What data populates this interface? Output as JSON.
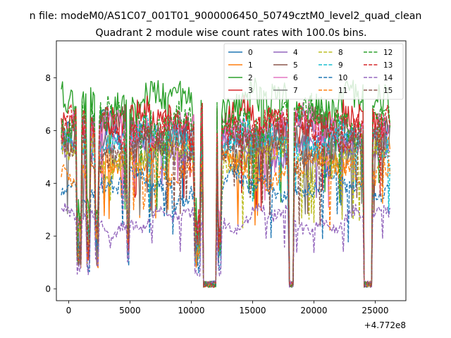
{
  "chart_data": {
    "type": "line",
    "suptitle": "n file: modeM0/AS1C07_001T01_9000006450_50749cztM0_level2_quad_clean",
    "title": "Quadrant 2 module wise count rates with 100.0s bins.",
    "xlabel": "",
    "ylabel": "",
    "offset_label": "+4.772e8",
    "xlim": [
      -1000,
      27500
    ],
    "ylim": [
      -0.45,
      9.4
    ],
    "xticks": [
      0,
      5000,
      10000,
      15000,
      20000,
      25000
    ],
    "xtick_labels": [
      "0",
      "5000",
      "10000",
      "15000",
      "20000",
      "25000"
    ],
    "yticks": [
      0,
      2,
      4,
      6,
      8
    ],
    "ytick_labels": [
      "0",
      "2",
      "4",
      "6",
      "8"
    ],
    "legend_position": "upper-right",
    "legend_columns": 4,
    "data_range": [
      -600,
      26200
    ],
    "gaps": [
      [
        11000,
        12000
      ],
      [
        17950,
        18300
      ],
      [
        24100,
        24700
      ]
    ],
    "dips": [
      [
        700,
        1000
      ],
      [
        1500,
        1700
      ],
      [
        2200,
        2400
      ],
      [
        4800,
        4900
      ],
      [
        10300,
        10700
      ],
      [
        12200,
        12400
      ]
    ],
    "series": [
      {
        "name": "0",
        "level": 5.9,
        "color": "#1f77b4",
        "dash": "solid"
      },
      {
        "name": "1",
        "level": 5.2,
        "color": "#ff7f0e",
        "dash": "solid"
      },
      {
        "name": "2",
        "level": 7.0,
        "color": "#2ca02c",
        "dash": "solid"
      },
      {
        "name": "3",
        "level": 6.3,
        "color": "#d62728",
        "dash": "solid"
      },
      {
        "name": "4",
        "level": 5.5,
        "color": "#9467bd",
        "dash": "solid"
      },
      {
        "name": "5",
        "level": 6.0,
        "color": "#8c564b",
        "dash": "solid"
      },
      {
        "name": "6",
        "level": 6.1,
        "color": "#e377c2",
        "dash": "solid"
      },
      {
        "name": "7",
        "level": 5.4,
        "color": "#7f7f7f",
        "dash": "solid"
      },
      {
        "name": "8",
        "level": 5.0,
        "color": "#bcbd22",
        "dash": "dashed"
      },
      {
        "name": "9",
        "level": 5.6,
        "color": "#17becf",
        "dash": "dashed"
      },
      {
        "name": "10",
        "level": 3.9,
        "color": "#1f77b4",
        "dash": "dashed"
      },
      {
        "name": "11",
        "level": 4.6,
        "color": "#ff7f0e",
        "dash": "dashed"
      },
      {
        "name": "12",
        "level": 6.4,
        "color": "#2ca02c",
        "dash": "dashed"
      },
      {
        "name": "13",
        "level": 6.1,
        "color": "#d62728",
        "dash": "dashed"
      },
      {
        "name": "14",
        "level": 2.6,
        "color": "#9467bd",
        "dash": "dashed"
      },
      {
        "name": "15",
        "level": 5.3,
        "color": "#8c564b",
        "dash": "dashed"
      }
    ]
  }
}
